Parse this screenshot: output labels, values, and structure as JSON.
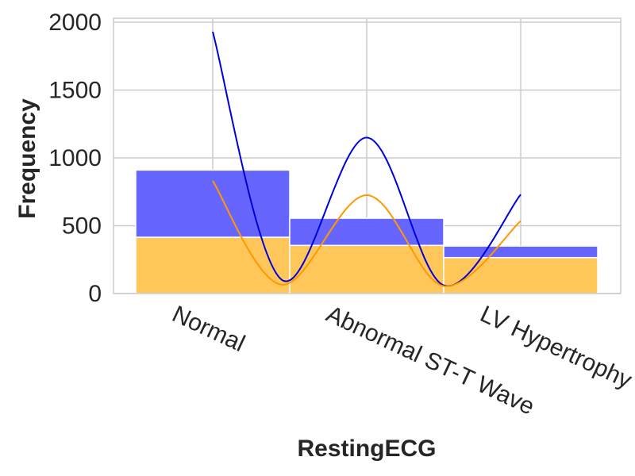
{
  "chart_data": {
    "type": "bar",
    "xlabel": "RestingECG",
    "ylabel": "Frequency",
    "categories": [
      "Normal",
      "Abnormal ST-T Wave",
      "LV Hypertrophy"
    ],
    "ylim": [
      0,
      2000
    ],
    "yticks": [
      0,
      500,
      1000,
      1500,
      2000
    ],
    "grid": true,
    "stacked": true,
    "bar_series": [
      {
        "color": "#ffc65a",
        "values": [
          415,
          355,
          265
        ]
      },
      {
        "color": "#6666ff",
        "values": [
          495,
          200,
          85
        ]
      }
    ],
    "kde_series": [
      {
        "color": "#0000dd",
        "points": [
          [
            0,
            1930
          ],
          [
            0.45,
            100
          ],
          [
            1,
            1150
          ],
          [
            1.5,
            60
          ],
          [
            2,
            730
          ]
        ]
      },
      {
        "color": "#ff9900",
        "points": [
          [
            0,
            830
          ],
          [
            0.45,
            65
          ],
          [
            1,
            725
          ],
          [
            1.5,
            55
          ],
          [
            2,
            535
          ]
        ]
      }
    ]
  }
}
